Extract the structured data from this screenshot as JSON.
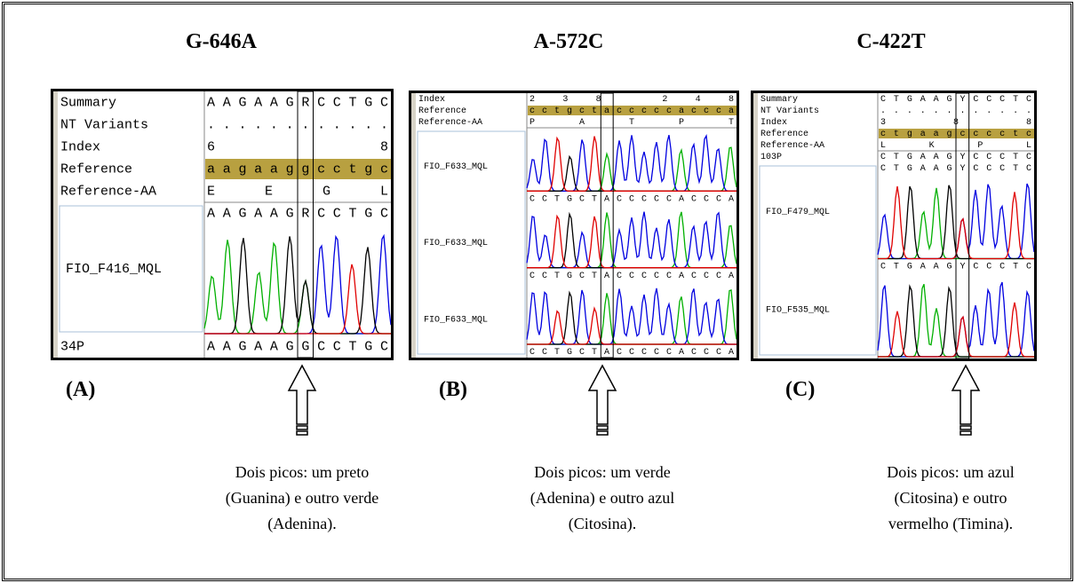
{
  "panels": [
    {
      "title": "G-646A",
      "label": "(A)",
      "caption": [
        "Dois picos: um preto",
        "(Guanina) e outro verde",
        "(Adenina)."
      ],
      "rows": [
        {
          "name": "Summary",
          "value": "AAGAAGRCCTGC"
        },
        {
          "name": "NT Variants",
          "value": "............"
        },
        {
          "name": "Index",
          "value": "68"
        },
        {
          "name": "Reference",
          "value": "aagaaggcctgc"
        },
        {
          "name": "Reference-AA",
          "value": "E  E  G  L"
        }
      ],
      "samples": [
        {
          "name": "FIO_F416_MQL",
          "sequence": "AAGAAGRCCTGC"
        }
      ],
      "group": {
        "name": "34P",
        "sequence": "AAGAAGGCCTGC"
      }
    },
    {
      "title": "A-572C",
      "label": "(B)",
      "caption": [
        "Dois picos: um verde",
        "(Adenina) e outro azul",
        "(Citosina)."
      ],
      "rows": [
        {
          "name": "Index",
          "value": "238       248"
        },
        {
          "name": "Reference",
          "value": "cctgctacccccaccca"
        },
        {
          "name": "Reference-AA",
          "value": "P   A   T   P   T"
        }
      ],
      "samples": [
        {
          "name": "FIO_F633_MQL",
          "sequence": "CCTGCTACCCCCACCCA"
        },
        {
          "name": "FIO_F633_MQL",
          "sequence": "CCTGCTACCCCCACCCA"
        },
        {
          "name": "FIO_F633_MQL",
          "sequence": "CCTGCTACCCCCACCCA"
        }
      ]
    },
    {
      "title": "C-422T",
      "label": "(C)",
      "caption": [
        "Dois picos: um azul",
        "(Citosina) e outro",
        "vermelho (Timina)."
      ],
      "rows": [
        {
          "name": "Summary",
          "value": "CTGAAGYCCCTC"
        },
        {
          "name": "NT Variants",
          "value": "............"
        },
        {
          "name": "Index",
          "value": "388"
        },
        {
          "name": "Reference",
          "value": "ctgaagcccctc"
        },
        {
          "name": "Reference-AA",
          "value": "L   K   P   L"
        }
      ],
      "group": {
        "name": "103P",
        "sequence": "CTGAAGYCCCTC"
      },
      "samples": [
        {
          "name": "FIO_F479_MQL",
          "sequence": "CTGAAGYCCCTC"
        },
        {
          "name": "FIO_F535_MQL",
          "sequence": "CTGAAGYCCCTC"
        }
      ]
    }
  ]
}
